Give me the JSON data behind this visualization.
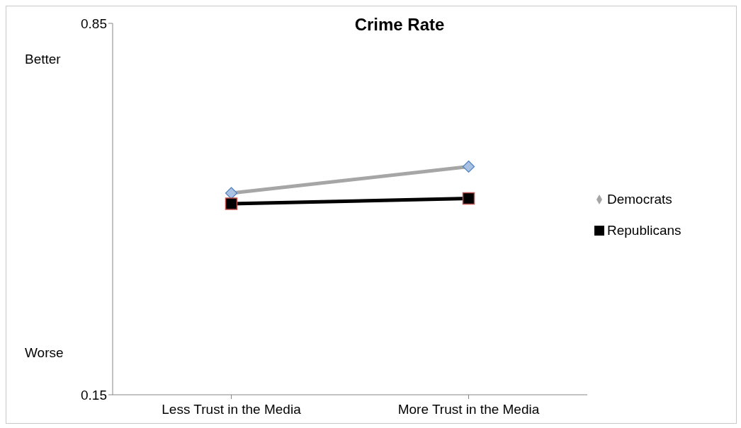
{
  "chart_data": {
    "type": "line",
    "title": "Crime Rate",
    "categories": [
      "Less Trust in the Media",
      "More Trust in the Media"
    ],
    "series": [
      {
        "name": "Democrats",
        "color": "#a6a6a6",
        "marker": "diamond",
        "values": [
          0.53,
          0.58
        ]
      },
      {
        "name": "Republicans",
        "color": "#000000",
        "marker": "square",
        "values": [
          0.51,
          0.52
        ]
      }
    ],
    "ylim": [
      0.15,
      0.85
    ],
    "yticks": [
      0.15,
      0.85
    ],
    "annotations": [
      "Better",
      "Worse"
    ],
    "legend": "right",
    "grid": false
  }
}
